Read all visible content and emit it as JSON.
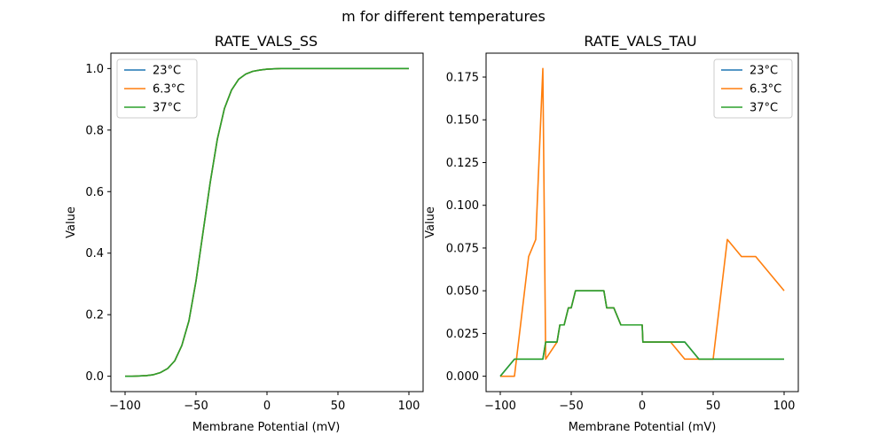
{
  "figure": {
    "suptitle": "m for different temperatures"
  },
  "chart_data": [
    {
      "type": "line",
      "title": "RATE_VALS_SS",
      "xlabel": "Membrane Potential (mV)",
      "ylabel": "Value",
      "xlim": [
        -110,
        110
      ],
      "ylim": [
        -0.05,
        1.05
      ],
      "xticks": [
        -100,
        -50,
        0,
        50,
        100
      ],
      "xtick_labels": [
        "−100",
        "−50",
        "0",
        "50",
        "100"
      ],
      "yticks": [
        0.0,
        0.2,
        0.4,
        0.6,
        0.8,
        1.0
      ],
      "ytick_labels": [
        "0.0",
        "0.2",
        "0.4",
        "0.6",
        "0.8",
        "1.0"
      ],
      "legend_position": "upper-left",
      "x": [
        -100,
        -95,
        -90,
        -85,
        -80,
        -75,
        -70,
        -65,
        -60,
        -55,
        -50,
        -45,
        -40,
        -35,
        -30,
        -25,
        -20,
        -15,
        -10,
        -5,
        0,
        5,
        10,
        20,
        30,
        40,
        50,
        60,
        70,
        80,
        90,
        100
      ],
      "series": [
        {
          "name": "23°C",
          "color": "#1f77b4",
          "values": [
            0.0,
            0.0,
            0.001,
            0.002,
            0.005,
            0.012,
            0.025,
            0.05,
            0.1,
            0.18,
            0.31,
            0.47,
            0.63,
            0.77,
            0.87,
            0.93,
            0.965,
            0.982,
            0.991,
            0.995,
            0.998,
            0.999,
            1.0,
            1.0,
            1.0,
            1.0,
            1.0,
            1.0,
            1.0,
            1.0,
            1.0,
            1.0
          ]
        },
        {
          "name": "6.3°C",
          "color": "#ff7f0e",
          "values": [
            0.0,
            0.0,
            0.001,
            0.002,
            0.005,
            0.012,
            0.025,
            0.05,
            0.1,
            0.18,
            0.31,
            0.47,
            0.63,
            0.77,
            0.87,
            0.93,
            0.965,
            0.982,
            0.991,
            0.995,
            0.998,
            0.999,
            1.0,
            1.0,
            1.0,
            1.0,
            1.0,
            1.0,
            1.0,
            1.0,
            1.0,
            1.0
          ]
        },
        {
          "name": "37°C",
          "color": "#2ca02c",
          "values": [
            0.0,
            0.0,
            0.001,
            0.002,
            0.005,
            0.012,
            0.025,
            0.05,
            0.1,
            0.18,
            0.31,
            0.47,
            0.63,
            0.77,
            0.87,
            0.93,
            0.965,
            0.982,
            0.991,
            0.995,
            0.998,
            0.999,
            1.0,
            1.0,
            1.0,
            1.0,
            1.0,
            1.0,
            1.0,
            1.0,
            1.0,
            1.0
          ]
        }
      ]
    },
    {
      "type": "line",
      "title": "RATE_VALS_TAU",
      "xlabel": "Membrane Potential (mV)",
      "ylabel": "Value",
      "xlim": [
        -110,
        110
      ],
      "ylim": [
        -0.009,
        0.189
      ],
      "xticks": [
        -100,
        -50,
        0,
        50,
        100
      ],
      "xtick_labels": [
        "−100",
        "−50",
        "0",
        "50",
        "100"
      ],
      "yticks": [
        0.0,
        0.025,
        0.05,
        0.075,
        0.1,
        0.125,
        0.15,
        0.175
      ],
      "ytick_labels": [
        "0.000",
        "0.025",
        "0.050",
        "0.075",
        "0.100",
        "0.125",
        "0.150",
        "0.175"
      ],
      "legend_position": "upper-right",
      "series": [
        {
          "name": "23°C",
          "color": "#1f77b4",
          "x": [
            -100,
            -90,
            -80,
            -70,
            -68,
            -60,
            -58,
            -55,
            -52,
            -50,
            -47,
            -45,
            -42,
            -40,
            -30,
            -27,
            -25,
            -20,
            -15,
            -10,
            0,
            0.5,
            10,
            20,
            30,
            40,
            50,
            60,
            70,
            80,
            90,
            100
          ],
          "values": [
            0.0,
            0.01,
            0.01,
            0.01,
            0.02,
            0.02,
            0.03,
            0.03,
            0.04,
            0.04,
            0.05,
            0.05,
            0.05,
            0.05,
            0.05,
            0.05,
            0.04,
            0.04,
            0.03,
            0.03,
            0.03,
            0.02,
            0.02,
            0.02,
            0.02,
            0.01,
            0.01,
            0.01,
            0.01,
            0.01,
            0.01,
            0.01
          ]
        },
        {
          "name": "6.3°C",
          "color": "#ff7f0e",
          "x": [
            -100,
            -90,
            -80,
            -75,
            -72,
            -70,
            -68,
            -60,
            -58,
            -55,
            -52,
            -50,
            -47,
            -45,
            -42,
            -40,
            -30,
            -27,
            -25,
            -20,
            -15,
            -10,
            0,
            0.5,
            10,
            20,
            30,
            40,
            50,
            60,
            70,
            80,
            90,
            100
          ],
          "values": [
            0.0,
            0.0,
            0.07,
            0.08,
            0.14,
            0.18,
            0.01,
            0.02,
            0.03,
            0.03,
            0.04,
            0.04,
            0.05,
            0.05,
            0.05,
            0.05,
            0.05,
            0.05,
            0.04,
            0.04,
            0.03,
            0.03,
            0.03,
            0.02,
            0.02,
            0.02,
            0.01,
            0.01,
            0.01,
            0.08,
            0.07,
            0.07,
            0.06,
            0.05
          ]
        },
        {
          "name": "37°C",
          "color": "#2ca02c",
          "x": [
            -100,
            -90,
            -80,
            -70,
            -68,
            -60,
            -58,
            -55,
            -52,
            -50,
            -47,
            -45,
            -42,
            -40,
            -30,
            -27,
            -25,
            -20,
            -15,
            -10,
            0,
            0.5,
            10,
            20,
            30,
            40,
            50,
            60,
            70,
            80,
            90,
            100
          ],
          "values": [
            0.0,
            0.01,
            0.01,
            0.01,
            0.02,
            0.02,
            0.03,
            0.03,
            0.04,
            0.04,
            0.05,
            0.05,
            0.05,
            0.05,
            0.05,
            0.05,
            0.04,
            0.04,
            0.03,
            0.03,
            0.03,
            0.02,
            0.02,
            0.02,
            0.02,
            0.01,
            0.01,
            0.01,
            0.01,
            0.01,
            0.01,
            0.01
          ]
        }
      ]
    }
  ]
}
